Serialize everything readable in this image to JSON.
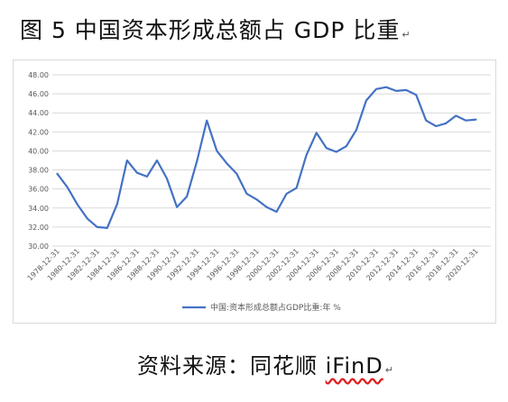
{
  "figure_title": "图 5 中国资本形成总额占 GDP 比重",
  "paragraph_mark": "↵",
  "source": {
    "prefix": "资料来源：同花顺 ",
    "brand": "iFinD"
  },
  "colors": {
    "line": "#4472c4",
    "grid": "#d9d9d9",
    "axis_text": "#595959"
  },
  "chart_data": {
    "type": "line",
    "title": "",
    "xlabel": "",
    "ylabel": "",
    "ylim": [
      30,
      48
    ],
    "y_ticks": [
      "30.00",
      "32.00",
      "34.00",
      "36.00",
      "38.00",
      "40.00",
      "42.00",
      "44.00",
      "46.00",
      "48.00"
    ],
    "x_tick_labels": [
      "1978-12-31",
      "1980-12-31",
      "1982-12-31",
      "1984-12-31",
      "1986-12-31",
      "1988-12-31",
      "1990-12-31",
      "1992-12-31",
      "1994-12-31",
      "1996-12-31",
      "1998-12-31",
      "2000-12-31",
      "2002-12-31",
      "2004-12-31",
      "2006-12-31",
      "2008-12-31",
      "2010-12-31",
      "2012-12-31",
      "2014-12-31",
      "2016-12-31",
      "2018-12-31",
      "2020-12-31"
    ],
    "grid": true,
    "legend_position": "bottom",
    "x": [
      1978,
      1979,
      1980,
      1981,
      1982,
      1983,
      1984,
      1985,
      1986,
      1987,
      1988,
      1989,
      1990,
      1991,
      1992,
      1993,
      1994,
      1995,
      1996,
      1997,
      1998,
      1999,
      2000,
      2001,
      2002,
      2003,
      2004,
      2005,
      2006,
      2007,
      2008,
      2009,
      2010,
      2011,
      2012,
      2013,
      2014,
      2015,
      2016,
      2017,
      2018,
      2019,
      2020,
      2021
    ],
    "series": [
      {
        "name": "中国:资本形成总额占GDP比重:年 %",
        "values": [
          37.6,
          36.2,
          34.4,
          32.9,
          32.0,
          31.9,
          34.4,
          39.0,
          37.7,
          37.3,
          39.0,
          37.1,
          34.1,
          35.2,
          38.9,
          43.2,
          40.0,
          38.7,
          37.6,
          35.5,
          34.9,
          34.1,
          33.6,
          35.5,
          36.1,
          39.6,
          41.9,
          40.3,
          39.9,
          40.5,
          42.2,
          45.3,
          46.5,
          46.7,
          46.3,
          46.4,
          45.9,
          43.2,
          42.6,
          42.9,
          43.7,
          43.2,
          43.3,
          null
        ]
      }
    ]
  }
}
